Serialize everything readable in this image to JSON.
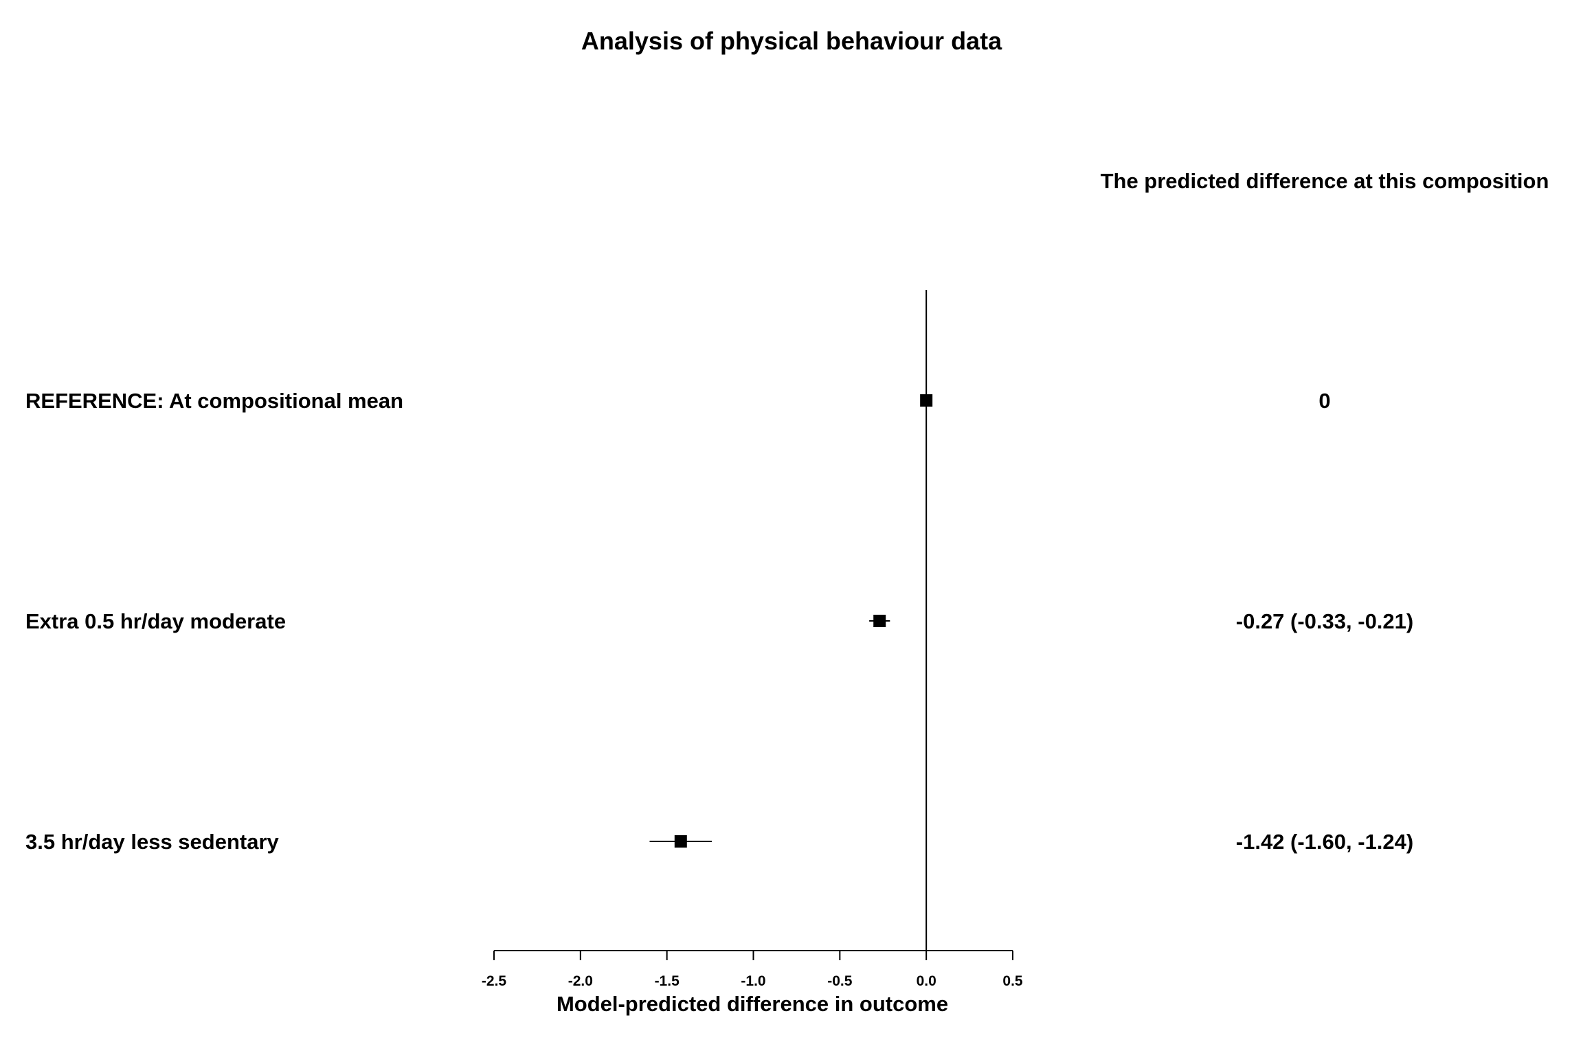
{
  "chart_data": {
    "type": "forest",
    "title": "Analysis of physical behaviour data",
    "column_header": "The predicted difference at this composition",
    "xlabel": "Model-predicted difference in outcome",
    "xlim": [
      -2.5,
      0.5
    ],
    "x_ticks": [
      -2.5,
      -2.0,
      -1.5,
      -1.0,
      -0.5,
      0.0,
      0.5
    ],
    "x_tick_labels": [
      "-2.5",
      "-2.0",
      "-1.5",
      "-1.0",
      "-0.5",
      "0.0",
      "0.5"
    ],
    "reference_line": 0,
    "rows": [
      {
        "label": "REFERENCE: At compositional mean",
        "estimate": 0,
        "lower": 0,
        "upper": 0,
        "estimate_text": "0"
      },
      {
        "label": "Extra 0.5 hr/day moderate",
        "estimate": -0.27,
        "lower": -0.33,
        "upper": -0.21,
        "estimate_text": "-0.27 (-0.33, -0.21)"
      },
      {
        "label": "3.5 hr/day less sedentary",
        "estimate": -1.42,
        "lower": -1.6,
        "upper": -1.24,
        "estimate_text": "-1.42 (-1.60, -1.24)"
      }
    ],
    "colors": {
      "marker": "#000000",
      "line": "#000000",
      "background": "#ffffff"
    }
  }
}
